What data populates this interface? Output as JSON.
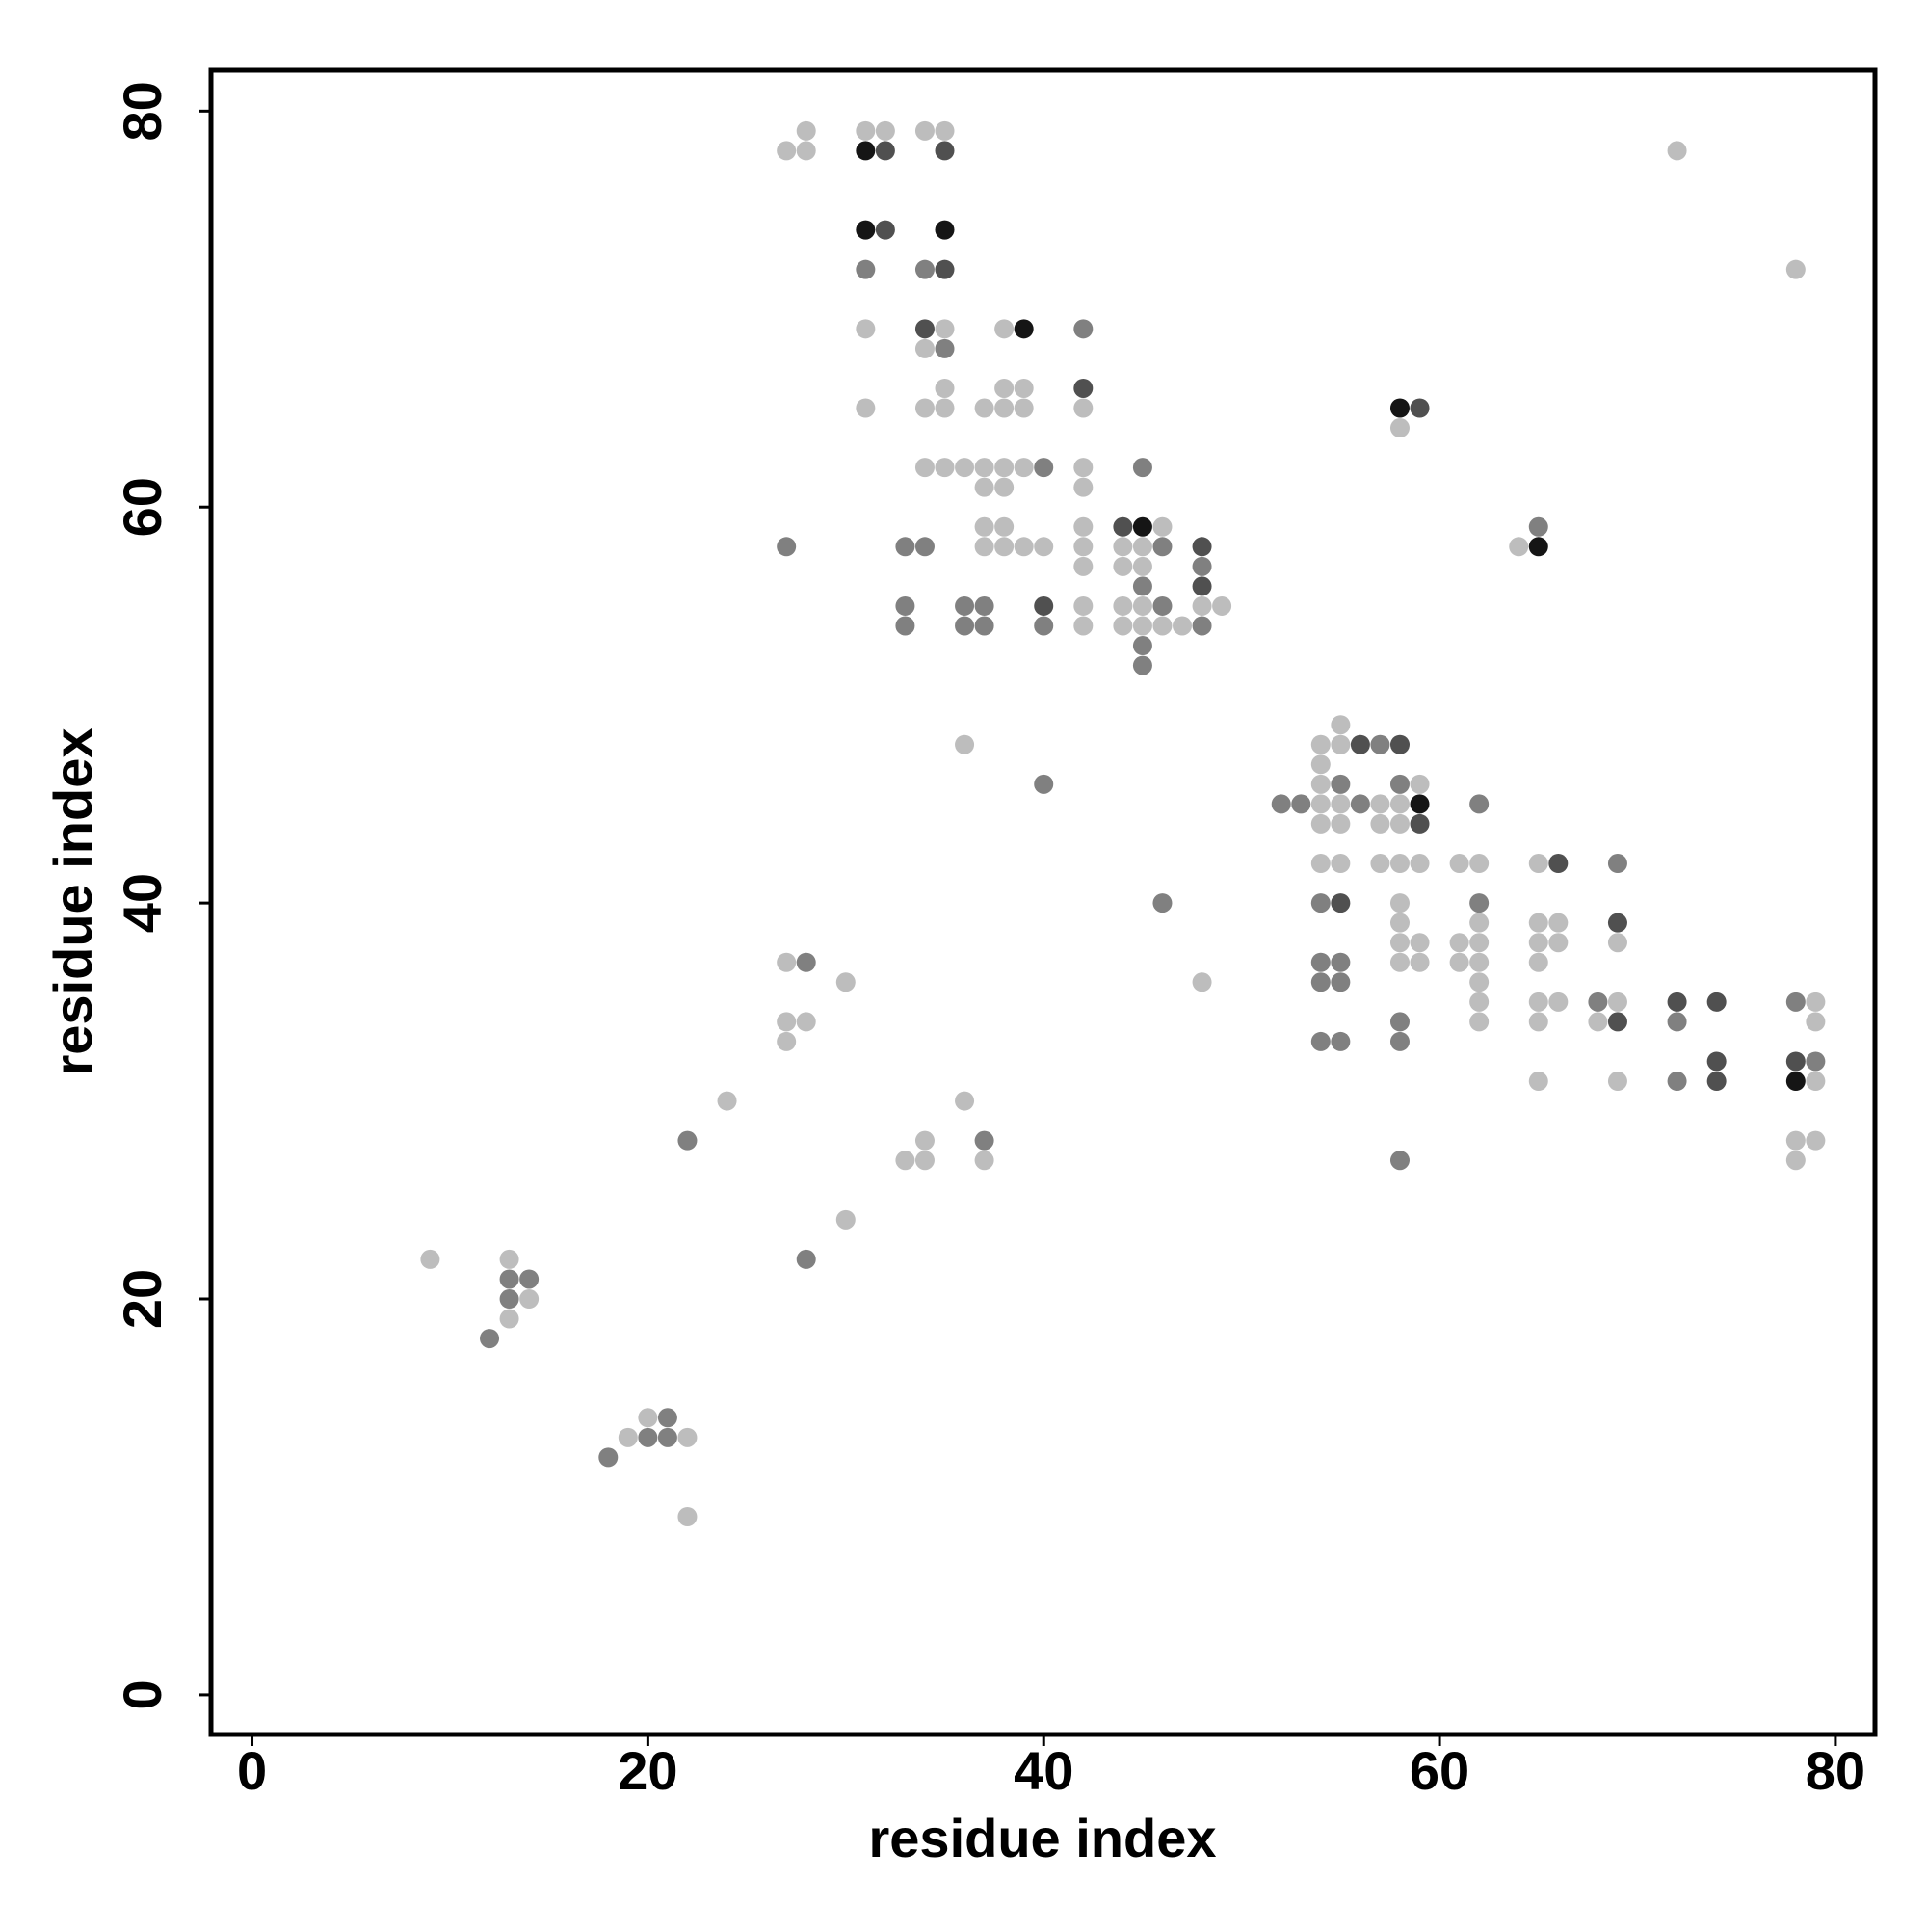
{
  "chart_data": {
    "type": "scatter",
    "xlabel": "residue index",
    "ylabel": "residue index",
    "xlim": [
      -2.07,
      82.0
    ],
    "ylim": [
      -2.0,
      82.06
    ],
    "xticks": [
      0,
      20,
      40,
      60,
      80
    ],
    "yticks": [
      0,
      20,
      40,
      60,
      80
    ],
    "series": [
      {
        "color": "#bdbdbd",
        "x": [
          28,
          31,
          32,
          34,
          35,
          27,
          28,
          72,
          78,
          31,
          35,
          38,
          34,
          35,
          38,
          39,
          31,
          34,
          35,
          37,
          38,
          39,
          42,
          58,
          34,
          35,
          36,
          37,
          38,
          39,
          42,
          37,
          38,
          42,
          37,
          38,
          42,
          46,
          37,
          38,
          39,
          40,
          42,
          44,
          45,
          64,
          42,
          44,
          45,
          42,
          44,
          45,
          48,
          49,
          42,
          44,
          45,
          46,
          47,
          55,
          36,
          54,
          55,
          54,
          54,
          59,
          54,
          55,
          57,
          58,
          54,
          55,
          57,
          58,
          54,
          55,
          57,
          58,
          59,
          61,
          62,
          65,
          58,
          58,
          62,
          65,
          66,
          58,
          59,
          61,
          62,
          65,
          66,
          69,
          27,
          58,
          59,
          61,
          62,
          65,
          30,
          48,
          62,
          62,
          65,
          66,
          69,
          79,
          27,
          28,
          62,
          65,
          68,
          79,
          27,
          65,
          69,
          79,
          24,
          36,
          34,
          78,
          79,
          33,
          34,
          37,
          78,
          30,
          9,
          13,
          14,
          13,
          20,
          19,
          22,
          22
        ],
        "y": [
          79,
          79,
          79,
          79,
          79,
          78,
          78,
          78,
          72,
          69,
          69,
          69,
          68,
          66,
          66,
          66,
          65,
          65,
          65,
          65,
          65,
          65,
          65,
          64,
          62,
          62,
          62,
          62,
          62,
          62,
          62,
          61,
          61,
          61,
          59,
          59,
          59,
          59,
          58,
          58,
          58,
          58,
          58,
          58,
          58,
          58,
          57,
          57,
          57,
          55,
          55,
          55,
          55,
          55,
          54,
          54,
          54,
          54,
          54,
          49,
          48,
          48,
          48,
          47,
          46,
          46,
          45,
          45,
          45,
          45,
          44,
          44,
          44,
          44,
          42,
          42,
          42,
          42,
          42,
          42,
          42,
          42,
          40,
          39,
          39,
          39,
          39,
          38,
          38,
          38,
          38,
          38,
          38,
          38,
          37,
          37,
          37,
          37,
          37,
          37,
          36,
          36,
          36,
          35,
          35,
          35,
          35,
          35,
          34,
          34,
          34,
          34,
          34,
          34,
          33,
          31,
          31,
          31,
          30,
          30,
          28,
          28,
          28,
          27,
          27,
          27,
          27,
          24,
          22,
          22,
          20,
          19,
          14,
          13,
          13,
          9
        ]
      },
      {
        "color": "#808080",
        "x": [
          31,
          34,
          42,
          35,
          40,
          45,
          65,
          27,
          33,
          34,
          46,
          48,
          45,
          33,
          36,
          37,
          46,
          33,
          36,
          37,
          40,
          48,
          45,
          45,
          57,
          40,
          55,
          58,
          52,
          53,
          56,
          62,
          69,
          46,
          54,
          62,
          28,
          54,
          55,
          54,
          55,
          68,
          78,
          58,
          72,
          54,
          55,
          58,
          79,
          72,
          22,
          37,
          58,
          28,
          13,
          14,
          13,
          12,
          21,
          20,
          21,
          18
        ],
        "y": [
          72,
          72,
          69,
          68,
          62,
          62,
          59,
          58,
          58,
          58,
          58,
          57,
          56,
          55,
          55,
          55,
          55,
          54,
          54,
          54,
          54,
          54,
          53,
          52,
          48,
          46,
          46,
          46,
          45,
          45,
          45,
          45,
          42,
          40,
          40,
          40,
          37,
          37,
          37,
          36,
          36,
          35,
          35,
          34,
          34,
          33,
          33,
          33,
          32,
          31,
          28,
          28,
          27,
          22,
          21,
          21,
          20,
          18,
          14,
          13,
          13,
          12
        ]
      },
      {
        "color": "#505050",
        "x": [
          32,
          35,
          32,
          35,
          34,
          42,
          59,
          44,
          48,
          48,
          40,
          56,
          58,
          59,
          66,
          69,
          55,
          72,
          74,
          69,
          74,
          78,
          74
        ],
        "y": [
          78,
          78,
          74,
          72,
          69,
          66,
          65,
          59,
          58,
          56,
          55,
          48,
          48,
          44,
          42,
          39,
          40,
          35,
          35,
          34,
          32,
          32,
          31
        ]
      },
      {
        "color": "#151515",
        "x": [
          31,
          31,
          35,
          39,
          58,
          45,
          65,
          59,
          78
        ],
        "y": [
          78,
          74,
          74,
          69,
          65,
          59,
          58,
          45,
          31
        ]
      }
    ]
  }
}
